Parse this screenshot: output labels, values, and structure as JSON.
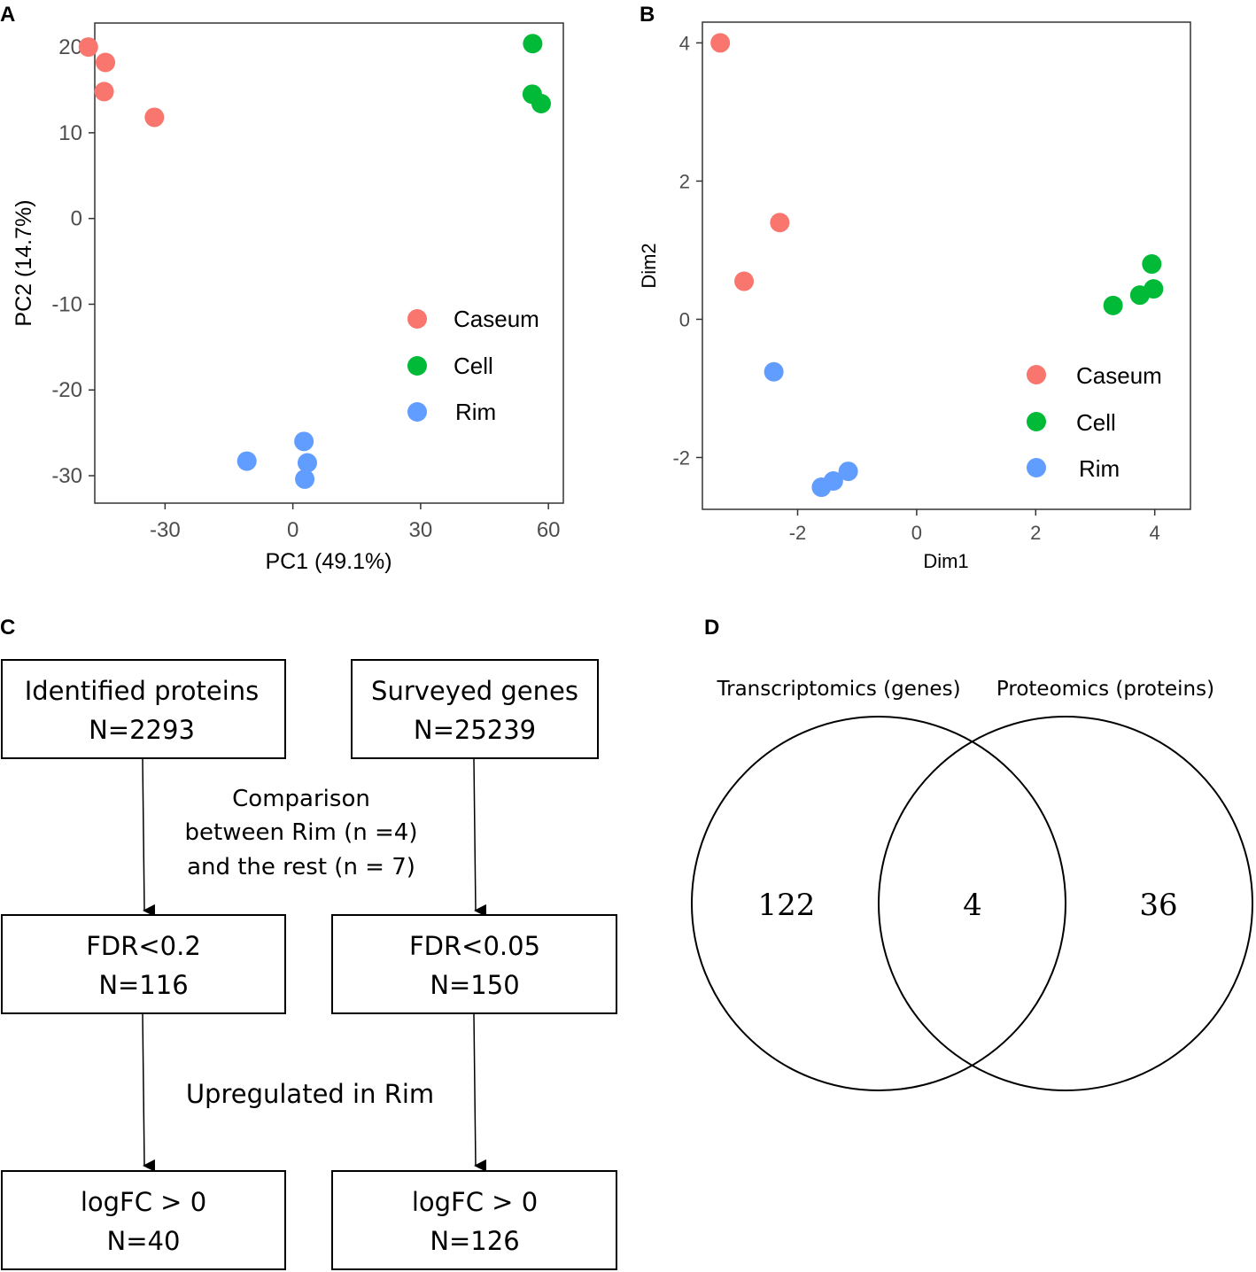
{
  "panels": {
    "a": "A",
    "b": "B",
    "c": "C",
    "d": "D"
  },
  "colors": {
    "Caseum": "#F8766D",
    "Cell": "#00BA38",
    "Rim": "#619CFF"
  },
  "chart_data": [
    {
      "id": "A",
      "type": "scatter",
      "title": "",
      "xlabel": "PC1 (49.1%)",
      "ylabel": "PC2 (14.7%)",
      "xlim": [
        -46.5,
        63.5
      ],
      "ylim": [
        -33.2,
        22.8
      ],
      "xticks": [
        -30,
        0,
        30,
        60
      ],
      "yticks": [
        20,
        10,
        0,
        -10,
        -20,
        -30
      ],
      "legend": [
        "Caseum",
        "Cell",
        "Rim"
      ],
      "legend_position": "right",
      "series": [
        {
          "name": "Caseum",
          "points": [
            [
              -48,
              20
            ],
            [
              -44,
              18.2
            ],
            [
              -44.3,
              14.8
            ],
            [
              -32.5,
              11.8
            ]
          ]
        },
        {
          "name": "Cell",
          "points": [
            [
              56.3,
              20.4
            ],
            [
              56.2,
              14.5
            ],
            [
              58.3,
              13.4
            ]
          ]
        },
        {
          "name": "Rim",
          "points": [
            [
              -10.8,
              -28.3
            ],
            [
              2.6,
              -26
            ],
            [
              3.4,
              -28.5
            ],
            [
              2.8,
              -30.4
            ]
          ]
        }
      ]
    },
    {
      "id": "B",
      "type": "scatter",
      "title": "",
      "xlabel": "Dim1",
      "ylabel": "Dim2",
      "xlim": [
        -3.6,
        4.6
      ],
      "ylim": [
        -2.75,
        4.3
      ],
      "xticks": [
        -2,
        0,
        2,
        4
      ],
      "yticks": [
        4,
        2,
        0,
        -2
      ],
      "legend": [
        "Caseum",
        "Cell",
        "Rim"
      ],
      "legend_position": "bottom-right",
      "series": [
        {
          "name": "Caseum",
          "points": [
            [
              -3.3,
              4.0
            ],
            [
              -2.9,
              0.55
            ],
            [
              -2.3,
              1.4
            ]
          ]
        },
        {
          "name": "Cell",
          "points": [
            [
              3.3,
              0.2
            ],
            [
              3.75,
              0.35
            ],
            [
              3.95,
              0.8
            ],
            [
              3.98,
              0.44
            ]
          ]
        },
        {
          "name": "Rim",
          "points": [
            [
              -2.4,
              -0.76
            ],
            [
              -1.15,
              -2.2
            ],
            [
              -1.4,
              -2.34
            ],
            [
              -1.6,
              -2.43
            ]
          ]
        }
      ]
    }
  ],
  "flow": {
    "box1": {
      "line1": "Identified proteins",
      "line2": "N=2293"
    },
    "box2": {
      "line1": "Surveyed genes",
      "line2": "N=25239"
    },
    "comparison": {
      "line1": "Comparison",
      "line2": "between Rim (n =4)",
      "line3": "and the rest (n = 7)"
    },
    "box3": {
      "line1": "FDR<0.2",
      "line2": "N=116"
    },
    "box4": {
      "line1": "FDR<0.05",
      "line2": "N=150"
    },
    "upregulated": "Upregulated in Rim",
    "box5": {
      "line1": "logFC > 0",
      "line2": "N=40"
    },
    "box6": {
      "line1": "logFC > 0",
      "line2": "N=126"
    }
  },
  "venn": {
    "left_label": "Transcriptomics (genes)",
    "right_label": "Proteomics (proteins)",
    "left_only": "122",
    "overlap": "4",
    "right_only": "36"
  }
}
